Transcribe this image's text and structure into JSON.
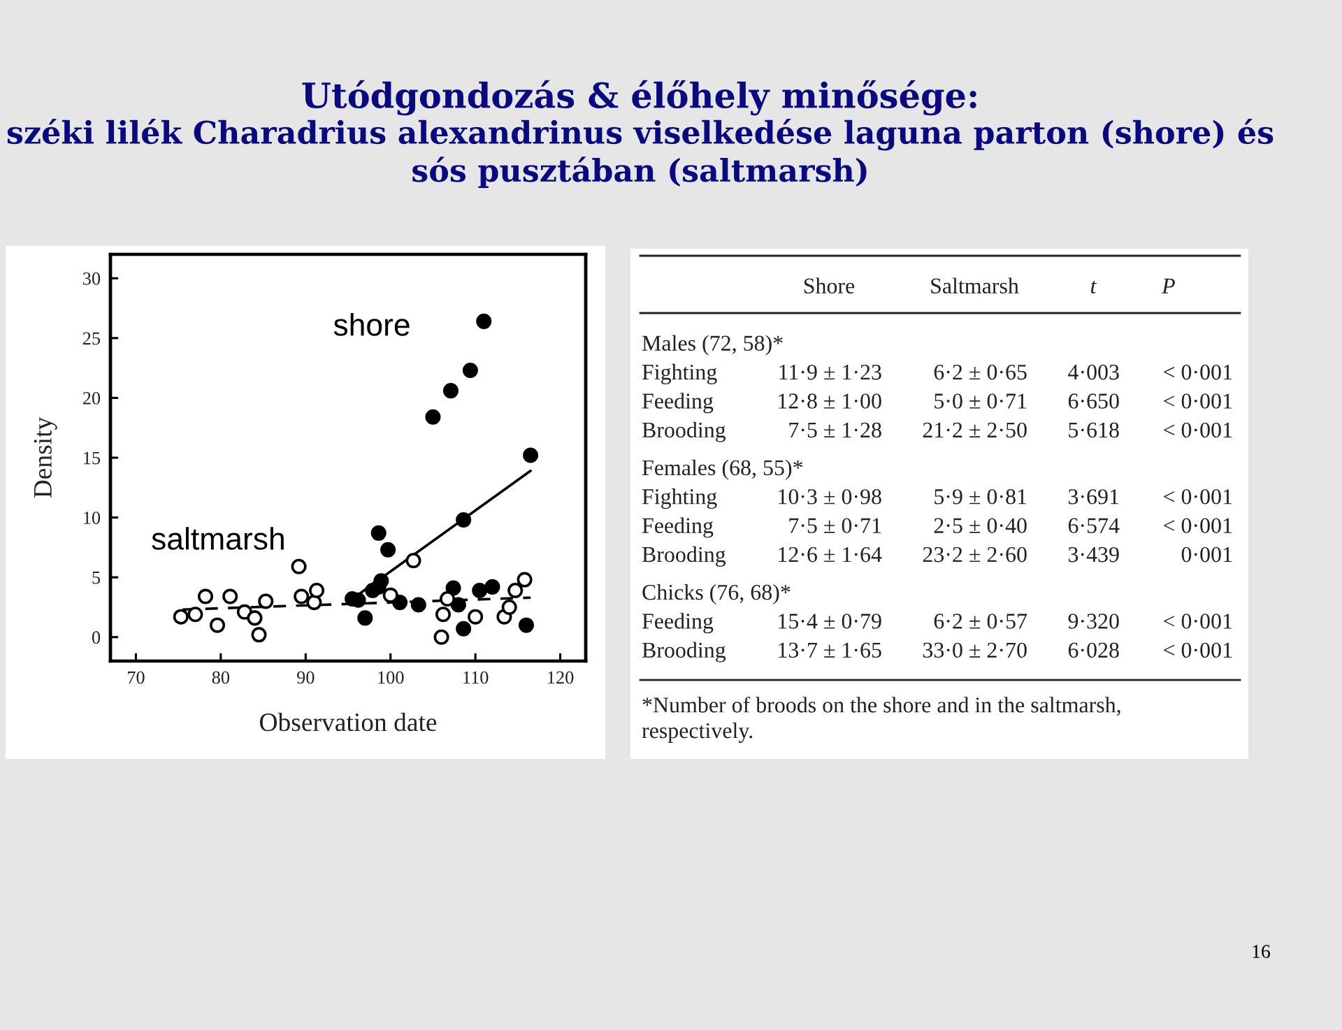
{
  "chart_data": [
    {
      "type": "scatter",
      "title": "Utódgondozás & élőhely minősége:",
      "subtitle": "széki lilék Charadrius alexandrinus viselkedése laguna parton (shore) és sós pusztában (saltmarsh)",
      "xlabel": "Observation date",
      "ylabel": "Density",
      "xlim": [
        67,
        123
      ],
      "ylim": [
        -2,
        32
      ],
      "xticks": [
        70,
        80,
        90,
        100,
        110,
        120
      ],
      "yticks": [
        0,
        5,
        10,
        15,
        20,
        25,
        30
      ],
      "annotations": [
        "16"
      ],
      "series": [
        {
          "name": "shore",
          "color": "#000000",
          "marker": "circle",
          "x": [
            95.5,
            96.2,
            97.0,
            97.9,
            98.6,
            98.6,
            98.9,
            99.7,
            101.1,
            103.3,
            105.0,
            107.1,
            107.4,
            108.0,
            108.6,
            108.6,
            109.4,
            110.5,
            111.0,
            112.0,
            116.0,
            116.5
          ],
          "values": [
            3.2,
            3.1,
            1.6,
            3.9,
            4.2,
            8.7,
            4.7,
            7.3,
            2.9,
            2.7,
            18.4,
            20.6,
            4.1,
            2.7,
            9.8,
            0.7,
            22.3,
            3.9,
            26.4,
            4.2,
            1.0,
            15.2
          ]
        },
        {
          "name": "saltmarsh",
          "color": "#000000",
          "marker": "open circle",
          "x": [
            75.3,
            77.0,
            78.2,
            79.6,
            81.1,
            82.8,
            84.0,
            84.5,
            85.3,
            89.2,
            89.5,
            91.0,
            91.3,
            100.0,
            102.7,
            106.0,
            106.2,
            106.7,
            110.0,
            113.4,
            114.0,
            114.7,
            115.8
          ],
          "values": [
            1.7,
            1.9,
            3.4,
            1.0,
            3.4,
            2.1,
            1.6,
            0.2,
            3.0,
            5.9,
            3.4,
            2.9,
            3.9,
            3.5,
            6.4,
            0.0,
            1.9,
            3.2,
            1.7,
            1.7,
            2.5,
            3.9,
            4.8
          ]
        },
        {
          "type": "line",
          "color": "#000000",
          "line_style": "solid",
          "marker": "none",
          "x": [
            95.5,
            116.5
          ],
          "values": [
            3.2,
            13.9
          ]
        },
        {
          "type": "line",
          "color": "#000000",
          "line_style": "dashed",
          "marker": "none",
          "x": [
            75.5,
            116.5
          ],
          "values": [
            2.3,
            3.3
          ]
        }
      ]
    },
    {
      "type": "other",
      "categories": [
        "Shore",
        "Saltmarsh",
        "t",
        "P"
      ],
      "y_categories": [
        "Males (72, 58)*",
        "Fighting",
        "Feeding",
        "Brooding",
        "Females (68, 55)*",
        "Fighting",
        "Feeding",
        "Brooding",
        "Chicks (76, 68)*",
        "Feeding",
        "Brooding"
      ],
      "cell_labels": [
        [
          null,
          null,
          null,
          null
        ],
        [
          "11·9 ± 1·23",
          "6·2 ± 0·65",
          "4·003",
          "< 0·001"
        ],
        [
          "12·8 ± 1·00",
          "5·0 ± 0·71",
          "6·650",
          "< 0·001"
        ],
        [
          "7·5 ± 1·28",
          "21·2 ± 2·50",
          "5·618",
          "< 0·001"
        ],
        [
          null,
          null,
          null,
          null
        ],
        [
          "10·3 ± 0·98",
          "5·9 ± 0·81",
          "3·691",
          "< 0·001"
        ],
        [
          "7·5 ± 0·71",
          "2·5 ± 0·40",
          "6·574",
          "< 0·001"
        ],
        [
          "12·6 ± 1·64",
          "23·2 ± 2·60",
          "3·439",
          "0·001"
        ],
        [
          null,
          null,
          null,
          null
        ],
        [
          "15·4 ± 0·79",
          "6·2 ± 0·57",
          "9·320",
          "< 0·001"
        ],
        [
          "13·7 ± 1·65",
          "33·0 ± 2·70",
          "6·028",
          "< 0·001"
        ]
      ],
      "annotations": [
        "*Number of broods on the shore and in the saltmarsh, respectively."
      ]
    }
  ]
}
